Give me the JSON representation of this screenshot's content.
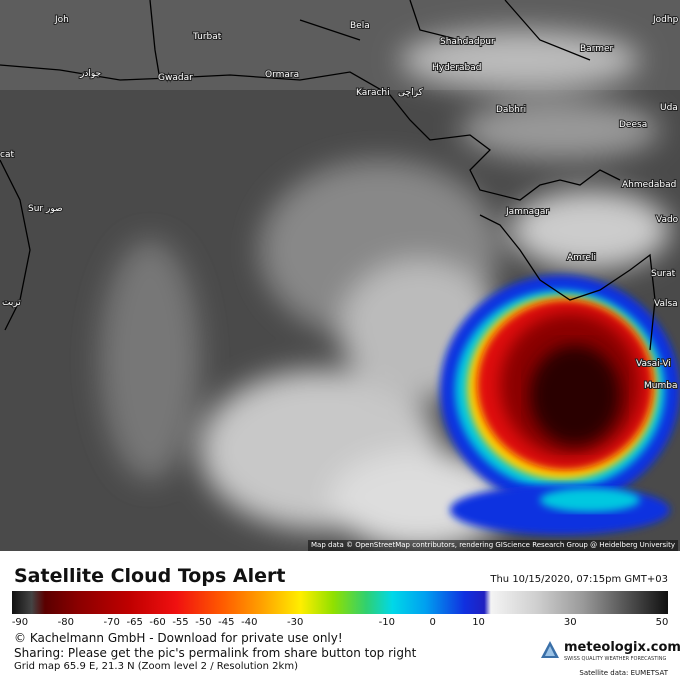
{
  "map": {
    "labels": [
      "Turbat",
      "Bela",
      "Shahdadpur",
      "Jodhp",
      "Gwadar",
      "Ormara",
      "Hyderabad",
      "Barmer",
      "Karachi",
      "كراچی",
      "Dabhri",
      "Uda",
      "Deesa",
      "cat",
      "Ahmedabad",
      "Sur",
      "صور",
      "Jamnagar",
      "Vado",
      "Amreli",
      "Surat",
      "Valsa",
      "Vasai-Vi",
      "Mumba",
      "جوادر",
      "تربت",
      "Joh"
    ],
    "attribution": "Map data © OpenStreetMap contributors, rendering GIScience Research Group @ Heidelberg University"
  },
  "header": {
    "title": "Satellite Cloud Tops Alert",
    "datetime": "Thu 10/15/2020, 07:15pm GMT+03"
  },
  "legend": {
    "ticks": [
      -90,
      -80,
      -70,
      -65,
      -60,
      -55,
      -50,
      -45,
      -40,
      -30,
      -10,
      0,
      10,
      30,
      50
    ]
  },
  "footer": {
    "copyright": "© Kachelmann GmbH - Download for private use only!",
    "sharing": "Sharing: Please get the pic's permalink from share button top right",
    "grid": "Grid map 65.9 E, 21.3 N (Zoom level 2 / Resolution 2km)",
    "brand": "meteologix.com",
    "tagline": "SWISS QUALITY WEATHER FORECASTING",
    "source": "Satellite data: EUMETSAT"
  }
}
